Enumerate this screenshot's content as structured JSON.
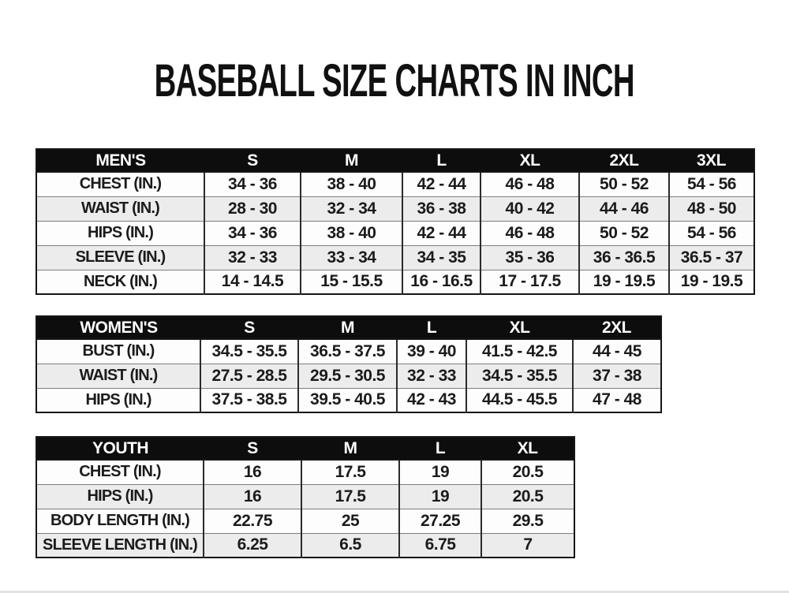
{
  "page": {
    "title": "BASEBALL SIZE CHARTS IN INCH"
  },
  "colors": {
    "header_bg": "#0d0d0d",
    "header_text": "#ffffff",
    "stripe_row": "#ececec",
    "plain_row": "#fdfdfd",
    "outer_border": "#161616",
    "text": "#1b1b1b"
  },
  "tables": [
    {
      "name": "mens",
      "header": [
        "MEN'S",
        "S",
        "M",
        "L",
        "XL",
        "2XL",
        "3XL"
      ],
      "rows": [
        [
          "CHEST (IN.)",
          "34 - 36",
          "38 - 40",
          "42 - 44",
          "46 - 48",
          "50 - 52",
          "54 - 56"
        ],
        [
          "WAIST (IN.)",
          "28 - 30",
          "32 - 34",
          "36 - 38",
          "40 - 42",
          "44 - 46",
          "48 - 50"
        ],
        [
          "HIPS (IN.)",
          "34 - 36",
          "38 - 40",
          "42 - 44",
          "46 - 48",
          "50 - 52",
          "54 - 56"
        ],
        [
          "SLEEVE (IN.)",
          "32 - 33",
          "33 - 34",
          "34 - 35",
          "35 - 36",
          "36 - 36.5",
          "36.5 - 37"
        ],
        [
          "NECK (IN.)",
          "14 - 14.5",
          "15 - 15.5",
          "16 - 16.5",
          "17 - 17.5",
          "19 - 19.5",
          "19 - 19.5"
        ]
      ]
    },
    {
      "name": "womens",
      "header": [
        "WOMEN'S",
        "S",
        "M",
        "L",
        "XL",
        "2XL"
      ],
      "rows": [
        [
          "BUST (IN.)",
          "34.5 - 35.5",
          "36.5 - 37.5",
          "39 - 40",
          "41.5 - 42.5",
          "44 - 45"
        ],
        [
          "WAIST (IN.)",
          "27.5 - 28.5",
          "29.5 - 30.5",
          "32 - 33",
          "34.5 - 35.5",
          "37 - 38"
        ],
        [
          "HIPS (IN.)",
          "37.5 - 38.5",
          "39.5 - 40.5",
          "42 - 43",
          "44.5 - 45.5",
          "47 - 48"
        ]
      ]
    },
    {
      "name": "youth",
      "header": [
        "YOUTH",
        "S",
        "M",
        "L",
        "XL"
      ],
      "rows": [
        [
          "CHEST (IN.)",
          "16",
          "17.5",
          "19",
          "20.5"
        ],
        [
          "HIPS (IN.)",
          "16",
          "17.5",
          "19",
          "20.5"
        ],
        [
          "BODY LENGTH (IN.)",
          "22.75",
          "25",
          "27.25",
          "29.5"
        ],
        [
          "SLEEVE LENGTH (IN.)",
          "6.25",
          "6.5",
          "6.75",
          "7"
        ]
      ]
    }
  ]
}
